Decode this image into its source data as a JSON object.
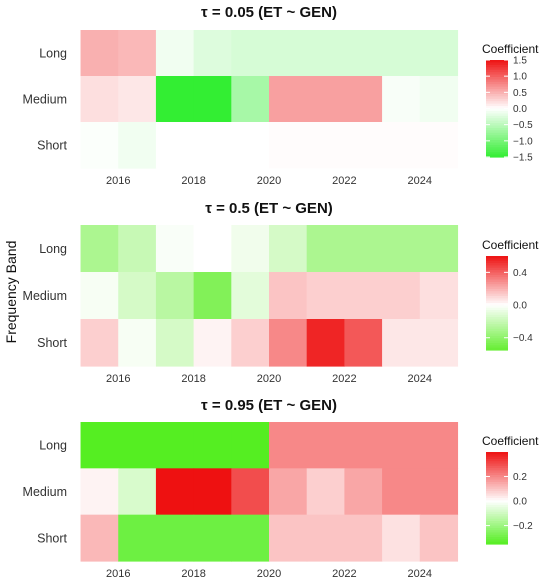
{
  "figure": {
    "ylabel": "Frequency Band"
  },
  "chart_data": [
    {
      "type": "heatmap",
      "title": "τ = 0.05  (ET ~ GEN)",
      "xlabel": "",
      "ylabel": "Frequency Band",
      "x_ticks": [
        "2016",
        "2018",
        "2020",
        "2022",
        "2024"
      ],
      "y_categories": [
        "Long",
        "Medium",
        "Short"
      ],
      "x_range": [
        2014.8,
        2025.2
      ],
      "columns": [
        {
          "from": 2015.0,
          "to": 2016.0
        },
        {
          "from": 2016.0,
          "to": 2017.0
        },
        {
          "from": 2017.0,
          "to": 2018.0
        },
        {
          "from": 2018.0,
          "to": 2019.0
        },
        {
          "from": 2019.0,
          "to": 2020.0
        },
        {
          "from": 2020.0,
          "to": 2021.0
        },
        {
          "from": 2021.0,
          "to": 2022.0
        },
        {
          "from": 2022.0,
          "to": 2023.0
        },
        {
          "from": 2023.0,
          "to": 2024.0
        },
        {
          "from": 2024.0,
          "to": 2025.0
        }
      ],
      "values": [
        [
          0.5,
          0.45,
          -0.1,
          -0.25,
          -0.3,
          -0.3,
          -0.3,
          -0.3,
          -0.3,
          -0.3
        ],
        [
          0.2,
          0.15,
          -1.5,
          -1.5,
          -0.65,
          0.6,
          0.6,
          0.6,
          -0.05,
          -0.1
        ],
        [
          -0.03,
          -0.1,
          0.0,
          0.0,
          0.0,
          0.02,
          0.02,
          0.02,
          0.02,
          0.02
        ]
      ],
      "legend": {
        "title": "Coefficient",
        "ticks": [
          1.5,
          1.0,
          0.5,
          0.0,
          -0.5,
          -1.0,
          -1.5
        ],
        "tick_labels": [
          "1.5",
          "1.0",
          "0.5",
          "0.0",
          "−0.5",
          "−1.0",
          "−1.5"
        ],
        "min": -1.5,
        "max": 1.5
      },
      "colors": {
        "low": "#33ee33",
        "mid": "#ffffff",
        "high": "#ee1111"
      }
    },
    {
      "type": "heatmap",
      "title": "τ = 0.5  (ET ~ GEN)",
      "xlabel": "",
      "ylabel": "Frequency Band",
      "x_ticks": [
        "2016",
        "2018",
        "2020",
        "2022",
        "2024"
      ],
      "y_categories": [
        "Long",
        "Medium",
        "Short"
      ],
      "x_range": [
        2014.8,
        2025.2
      ],
      "columns": [
        {
          "from": 2015.0,
          "to": 2016.0
        },
        {
          "from": 2016.0,
          "to": 2017.0
        },
        {
          "from": 2017.0,
          "to": 2018.0
        },
        {
          "from": 2018.0,
          "to": 2019.0
        },
        {
          "from": 2019.0,
          "to": 2020.0
        },
        {
          "from": 2020.0,
          "to": 2021.0
        },
        {
          "from": 2021.0,
          "to": 2022.0
        },
        {
          "from": 2022.0,
          "to": 2023.0
        },
        {
          "from": 2023.0,
          "to": 2024.0
        },
        {
          "from": 2024.0,
          "to": 2025.0
        }
      ],
      "values": [
        [
          -0.3,
          -0.2,
          -0.02,
          0.0,
          -0.05,
          -0.15,
          -0.3,
          -0.3,
          -0.3,
          -0.3
        ],
        [
          -0.03,
          -0.15,
          -0.25,
          -0.45,
          -0.1,
          0.15,
          0.12,
          0.12,
          0.12,
          0.08
        ],
        [
          0.12,
          -0.03,
          -0.15,
          0.03,
          0.12,
          0.3,
          0.55,
          0.42,
          0.06,
          0.06
        ]
      ],
      "legend": {
        "title": "Coefficient",
        "ticks": [
          0.4,
          0.0,
          -0.4
        ],
        "tick_labels": [
          "0.4",
          "0.0",
          "−0.4"
        ],
        "min": -0.55,
        "max": 0.6
      },
      "colors": {
        "low": "#66ee33",
        "mid": "#ffffff",
        "high": "#ee1111"
      }
    },
    {
      "type": "heatmap",
      "title": "τ = 0.95  (ET ~ GEN)",
      "xlabel": "",
      "ylabel": "Frequency Band",
      "x_ticks": [
        "2016",
        "2018",
        "2020",
        "2022",
        "2024"
      ],
      "y_categories": [
        "Long",
        "Medium",
        "Short"
      ],
      "x_range": [
        2014.8,
        2025.2
      ],
      "columns": [
        {
          "from": 2015.0,
          "to": 2016.0
        },
        {
          "from": 2016.0,
          "to": 2017.0
        },
        {
          "from": 2017.0,
          "to": 2018.0
        },
        {
          "from": 2018.0,
          "to": 2019.0
        },
        {
          "from": 2019.0,
          "to": 2020.0
        },
        {
          "from": 2020.0,
          "to": 2021.0
        },
        {
          "from": 2021.0,
          "to": 2022.0
        },
        {
          "from": 2022.0,
          "to": 2023.0
        },
        {
          "from": 2023.0,
          "to": 2024.0
        },
        {
          "from": 2024.0,
          "to": 2025.0
        }
      ],
      "values": [
        [
          -0.35,
          -0.35,
          -0.35,
          -0.35,
          -0.35,
          0.2,
          0.2,
          0.2,
          0.2,
          0.2
        ],
        [
          0.02,
          -0.08,
          0.4,
          0.4,
          0.3,
          0.15,
          0.08,
          0.15,
          0.2,
          0.2
        ],
        [
          0.12,
          -0.3,
          -0.3,
          -0.3,
          -0.3,
          0.1,
          0.1,
          0.1,
          0.05,
          0.1
        ]
      ],
      "legend": {
        "title": "Coefficient",
        "ticks": [
          0.2,
          0.0,
          -0.2
        ],
        "tick_labels": [
          "0.2",
          "0.0",
          "−0.2"
        ],
        "min": -0.35,
        "max": 0.4
      },
      "colors": {
        "low": "#55ee22",
        "mid": "#ffffff",
        "high": "#ee1111"
      }
    }
  ]
}
